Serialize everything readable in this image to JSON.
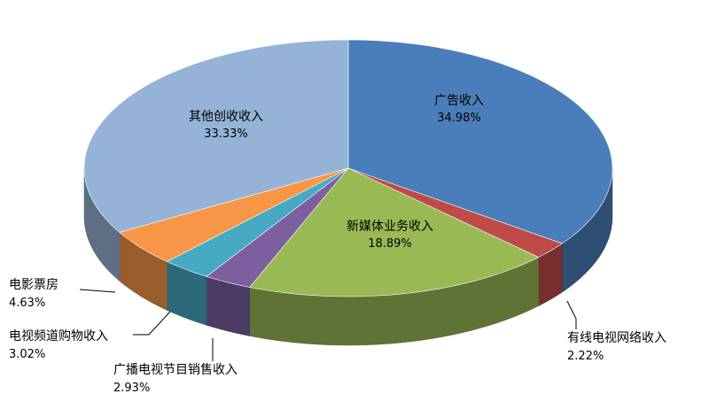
{
  "chart_data": {
    "type": "pie3d",
    "categories": [
      "广告收入",
      "有线电视网络收入",
      "新媒体业务收入",
      "广播电视节目销售收入",
      "电视频道购物收入",
      "电影票房",
      "其他创收收入"
    ],
    "values": [
      34.98,
      2.22,
      18.89,
      2.93,
      3.02,
      4.63,
      33.33
    ],
    "value_labels": [
      "34.98%",
      "2.22%",
      "18.89%",
      "2.93%",
      "3.02%",
      "4.63%",
      "33.33%"
    ],
    "colors": [
      "#4a7ebb",
      "#be4b48",
      "#98b954",
      "#7d5fa0",
      "#46aac5",
      "#f79646",
      "#95b3d7"
    ]
  }
}
